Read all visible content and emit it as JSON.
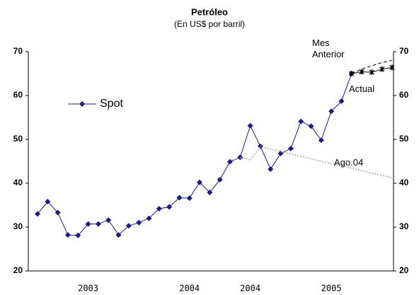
{
  "chart_data": {
    "type": "line",
    "title": "Petróleo",
    "subtitle": "(En US$ por barril)",
    "categories": [
      null,
      null,
      null,
      null,
      null,
      "2003",
      null,
      null,
      null,
      null,
      null,
      null,
      null,
      null,
      null,
      "2004",
      null,
      null,
      null,
      null,
      null,
      "2004",
      null,
      null,
      null,
      null,
      null,
      null,
      null,
      "2005",
      null,
      null,
      null,
      null,
      null,
      null
    ],
    "series": [
      {
        "name": "Spot",
        "color": "#1a1a8c",
        "marker": "diamond",
        "style": "solid",
        "values": [
          33,
          35.8,
          33.3,
          28.2,
          28.1,
          30.7,
          30.7,
          31.6,
          28.2,
          30.3,
          31,
          32,
          34.2,
          34.6,
          36.7,
          36.6,
          40.2,
          37.9,
          40.8,
          44.9,
          45.9,
          53.1,
          48.4,
          43.2,
          46.8,
          47.9,
          54.1,
          53,
          49.8,
          56.4,
          58.7,
          65,
          null,
          null,
          null,
          null
        ]
      },
      {
        "name": "Mes Anterior",
        "color": "#000000",
        "marker": "none",
        "style": "dashed",
        "values": [
          null,
          null,
          null,
          null,
          null,
          null,
          null,
          null,
          null,
          null,
          null,
          null,
          null,
          null,
          null,
          null,
          null,
          null,
          null,
          null,
          null,
          null,
          null,
          null,
          null,
          null,
          null,
          null,
          null,
          null,
          null,
          65,
          66,
          66.8,
          67.5,
          68
        ]
      },
      {
        "name": "Actual",
        "color": "#000000",
        "marker": "star",
        "style": "solid",
        "values": [
          null,
          null,
          null,
          null,
          null,
          null,
          null,
          null,
          null,
          null,
          null,
          null,
          null,
          null,
          null,
          null,
          null,
          null,
          null,
          null,
          null,
          null,
          null,
          null,
          null,
          null,
          null,
          null,
          null,
          null,
          null,
          65,
          65.4,
          65.3,
          66,
          66.4
        ]
      },
      {
        "name": "Ago.04",
        "color": "#a8a8a8",
        "marker": "none",
        "style": "dotted",
        "values": [
          null,
          null,
          null,
          null,
          null,
          null,
          null,
          null,
          null,
          null,
          null,
          null,
          null,
          null,
          null,
          null,
          null,
          null,
          null,
          null,
          45.9,
          45.3,
          48.3,
          47.8,
          47.2,
          46.7,
          46.1,
          45.6,
          45,
          44.5,
          44,
          43.4,
          42.9,
          42.3,
          41.8,
          41.2
        ]
      }
    ],
    "ylim": [
      20,
      70
    ],
    "yticks": [
      20,
      30,
      40,
      50,
      60,
      70
    ],
    "y2lim": [
      20,
      70
    ],
    "y2ticks": [
      20,
      30,
      40,
      50,
      60,
      70
    ],
    "grid": false,
    "legend": "upper left"
  }
}
